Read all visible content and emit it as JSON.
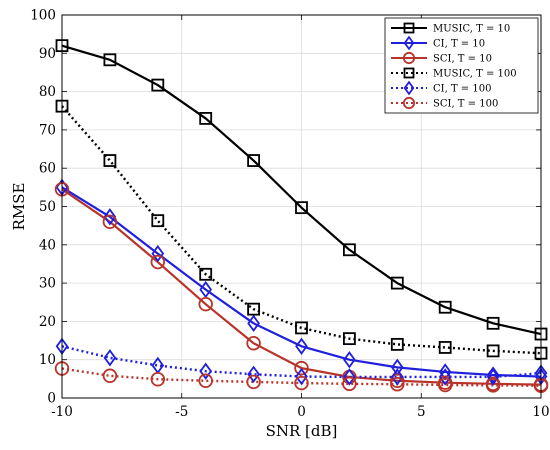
{
  "chart_data": {
    "type": "line",
    "title": "",
    "xlabel": "SNR [dB]",
    "ylabel": "RMSE",
    "xlim": [
      -10,
      10
    ],
    "ylim": [
      0,
      100
    ],
    "xticks": [
      -10,
      -5,
      0,
      5,
      10
    ],
    "yticks": [
      0,
      10,
      20,
      30,
      40,
      50,
      60,
      70,
      80,
      90,
      100
    ],
    "grid": true,
    "legend_position": "top-right",
    "x": [
      -10,
      -8,
      -6,
      -4,
      -2,
      0,
      2,
      4,
      6,
      8,
      10
    ],
    "series": [
      {
        "name": "MUSIC, T = 10",
        "color": "#000000",
        "line_style": "solid",
        "marker": "square",
        "values": [
          92.0,
          88.3,
          81.7,
          73.0,
          62.0,
          49.7,
          38.7,
          30.0,
          23.7,
          19.5,
          16.7
        ]
      },
      {
        "name": "CI, T = 10",
        "color": "#1f1fdd",
        "line_style": "solid",
        "marker": "diamond",
        "values": [
          55.0,
          47.3,
          37.7,
          28.3,
          19.5,
          13.5,
          10.0,
          8.0,
          6.8,
          6.0,
          5.6
        ]
      },
      {
        "name": "SCI, T = 10",
        "color": "#b8342a",
        "line_style": "solid",
        "marker": "circle",
        "values": [
          54.5,
          46.0,
          35.5,
          24.5,
          14.3,
          7.8,
          5.5,
          4.5,
          4.0,
          3.7,
          3.5
        ]
      },
      {
        "name": "MUSIC, T = 100",
        "color": "#000000",
        "line_style": "dotted",
        "marker": "square",
        "values": [
          76.2,
          62.0,
          46.3,
          32.3,
          23.2,
          18.3,
          15.5,
          14.0,
          13.2,
          12.3,
          11.7
        ]
      },
      {
        "name": "CI, T = 100",
        "color": "#1f1fdd",
        "line_style": "dotted",
        "marker": "diamond",
        "values": [
          13.5,
          10.5,
          8.5,
          7.0,
          6.2,
          5.6,
          5.5,
          5.5,
          5.5,
          5.5,
          6.5
        ]
      },
      {
        "name": "SCI, T = 100",
        "color": "#b8342a",
        "line_style": "dotted",
        "marker": "circle",
        "values": [
          7.7,
          5.8,
          4.9,
          4.5,
          4.2,
          3.9,
          3.7,
          3.6,
          3.4,
          3.3,
          3.2
        ]
      }
    ]
  }
}
